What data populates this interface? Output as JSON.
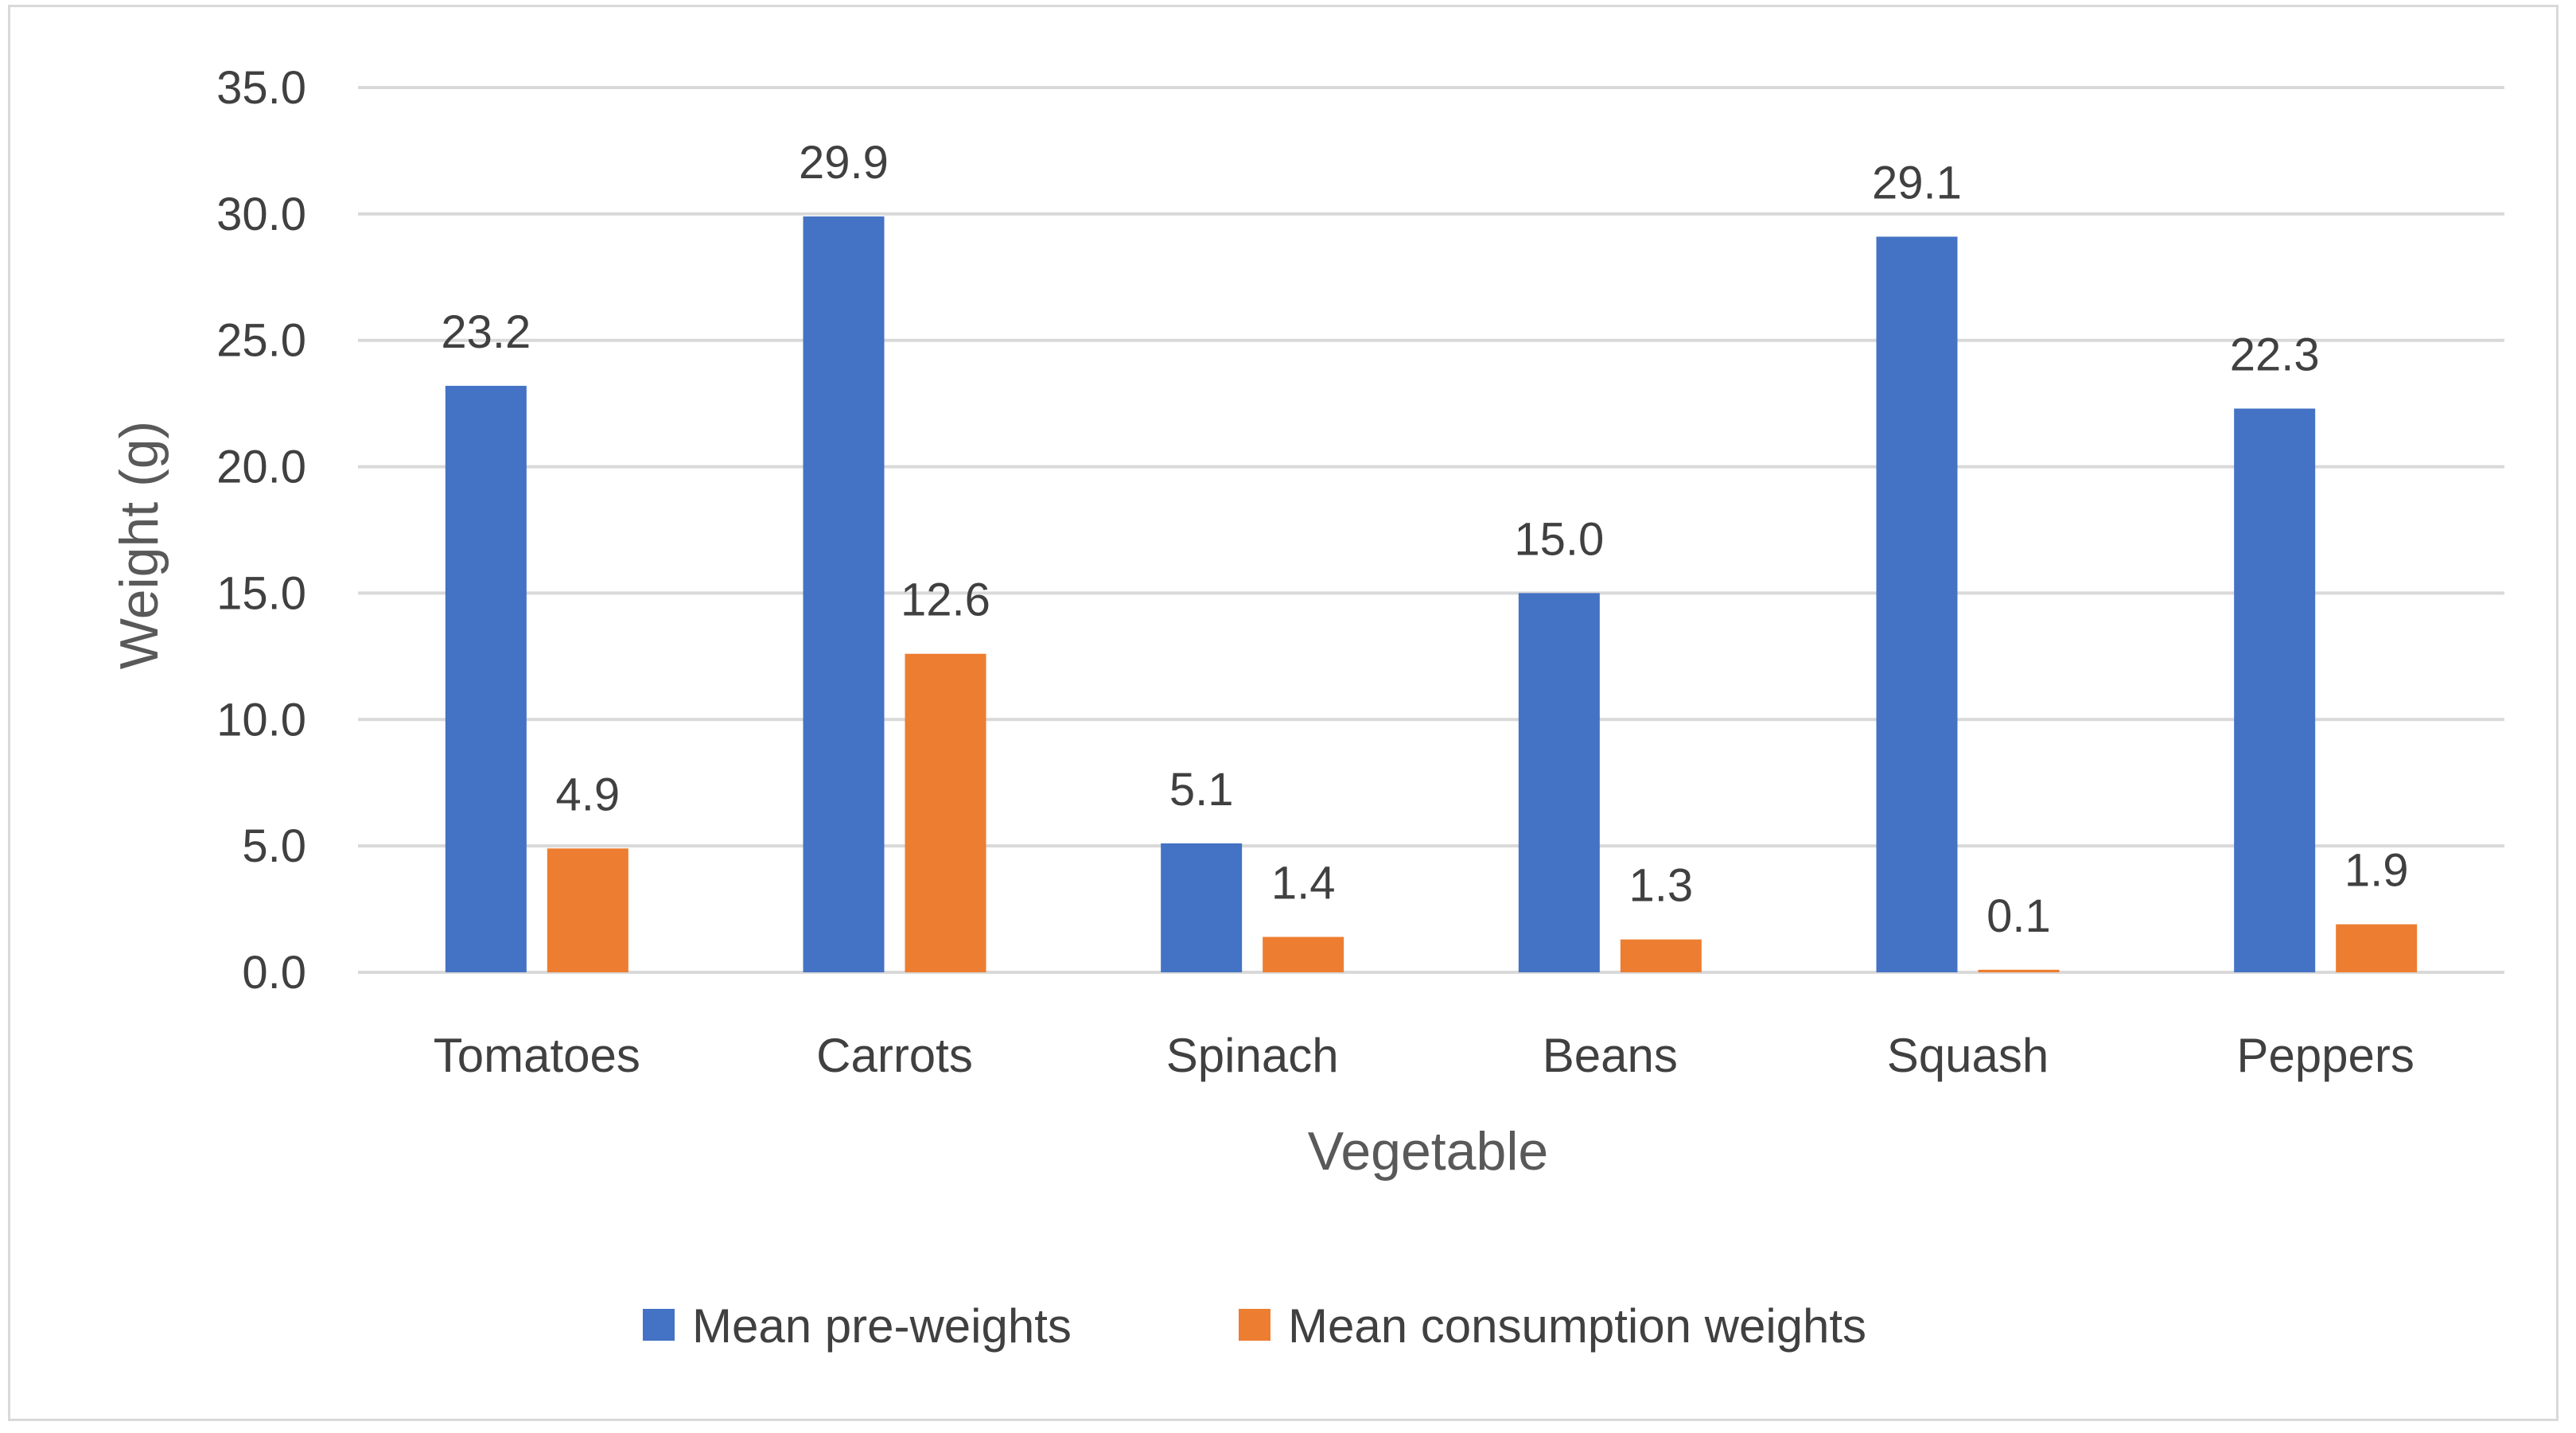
{
  "chart_data": {
    "type": "bar",
    "title": "",
    "xlabel": "Vegetable",
    "ylabel": "Weight (g)",
    "categories": [
      "Tomatoes",
      "Carrots",
      "Spinach",
      "Beans",
      "Squash",
      "Peppers"
    ],
    "series": [
      {
        "name": "Mean pre-weights",
        "color": "#4472c4",
        "values": [
          23.2,
          29.9,
          5.1,
          15.0,
          29.1,
          22.3
        ]
      },
      {
        "name": "Mean consumption weights",
        "color": "#ed7d31",
        "values": [
          4.9,
          12.6,
          1.4,
          1.3,
          0.1,
          1.9
        ]
      }
    ],
    "ylim": [
      0,
      35
    ],
    "yticks": [
      "0.0",
      "5.0",
      "10.0",
      "15.0",
      "20.0",
      "25.0",
      "30.0",
      "35.0"
    ],
    "grid": true,
    "legend": "bottom"
  }
}
